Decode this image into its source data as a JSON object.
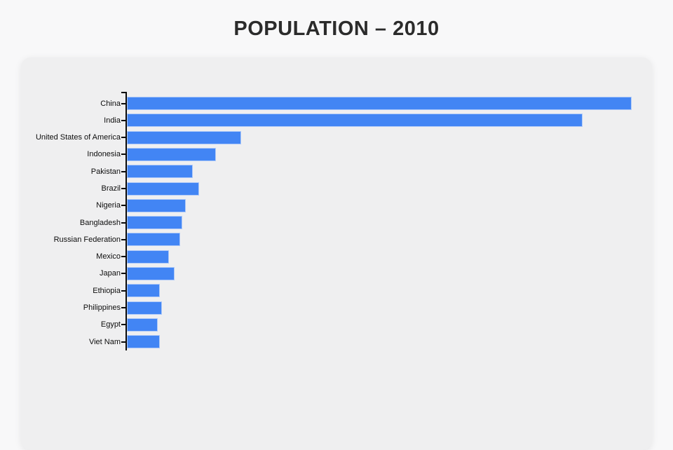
{
  "page": {
    "title": "POPULATION – 2010"
  },
  "colors": {
    "page_bg": "#F8F8F9",
    "card_bg": "#EFEFF0",
    "title_color": "#2B2B2B",
    "label_color": "#0D0D0D",
    "axis_color": "#0B0B0B",
    "bar_fill": "#4285F4",
    "bar_border": "#AEC9F8"
  },
  "chart_data": {
    "type": "bar",
    "orientation": "horizontal",
    "title": "POPULATION – 2010",
    "xlabel": "",
    "ylabel": "",
    "legend": false,
    "grid": false,
    "x_axis_labels_visible": false,
    "unit": "millions (estimated from bar lengths; no numeric axis visible in view)",
    "categories": [
      "China",
      "India",
      "United States of America",
      "Indonesia",
      "Pakistan",
      "Brazil",
      "Nigeria",
      "Bangladesh",
      "Russian Federation",
      "Mexico",
      "Japan",
      "Ethiopia",
      "Philippines",
      "Egypt",
      "Viet Nam"
    ],
    "values": [
      1341,
      1210,
      304,
      237,
      175,
      192,
      156,
      147,
      142,
      112,
      127,
      87,
      93,
      82,
      87
    ],
    "xlim": [
      0,
      1400
    ]
  }
}
